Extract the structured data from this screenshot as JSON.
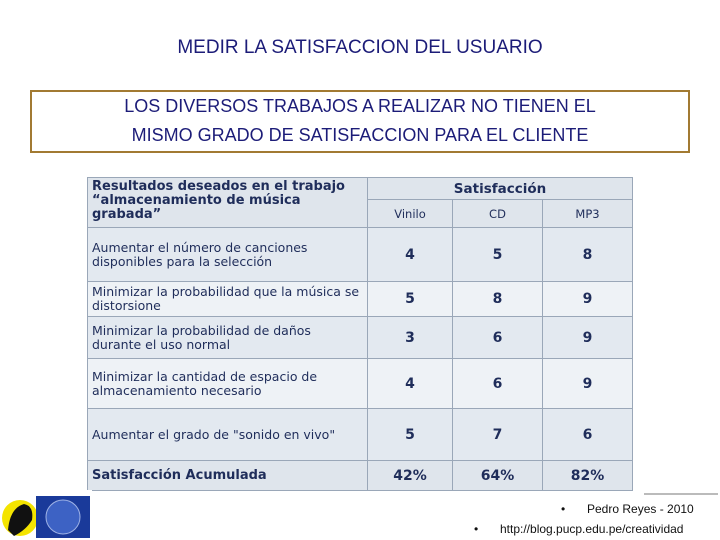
{
  "title": "MEDIR LA SATISFACCION DEL USUARIO",
  "subtitle": [
    "LOS DIVERSOS TRABAJOS A REALIZAR NO TIENEN EL",
    "MISMO GRADO DE SATISFACCION PARA EL CLIENTE"
  ],
  "table": {
    "corner": "Resultados deseados en el trabajo “almacenamiento de música grabada”",
    "group": "Satisfacción",
    "columns": [
      "Vinilo",
      "CD",
      "MP3"
    ],
    "rows": [
      {
        "label": "Aumentar el número de canciones disponibles para la selección",
        "values": [
          4,
          5,
          8
        ]
      },
      {
        "label": "Minimizar la probabilidad que la música se distorsione",
        "values": [
          5,
          8,
          9
        ]
      },
      {
        "label": "Minimizar la probabilidad de daños durante el uso normal",
        "values": [
          3,
          6,
          9
        ]
      },
      {
        "label": "Minimizar la cantidad de espacio de almacenamiento necesario",
        "values": [
          4,
          6,
          9
        ]
      },
      {
        "label": "Aumentar el grado de \"sonido en vivo\"",
        "values": [
          5,
          7,
          6
        ]
      }
    ],
    "total": {
      "label": "Satisfacción Acumulada",
      "values": [
        "42%",
        "64%",
        "82%"
      ]
    }
  },
  "footer": {
    "author": "Pedro Reyes - 2010",
    "url": "http://blog.pucp.edu.pe/creatividad"
  }
}
